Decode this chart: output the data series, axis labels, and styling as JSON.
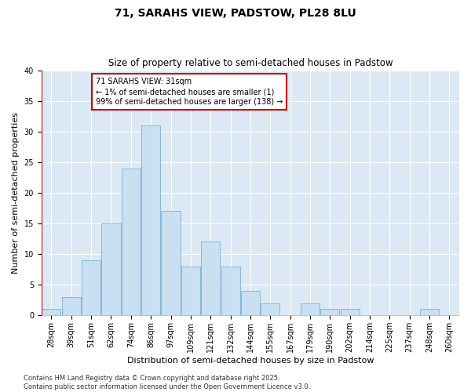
{
  "title": "71, SARAHS VIEW, PADSTOW, PL28 8LU",
  "subtitle": "Size of property relative to semi-detached houses in Padstow",
  "xlabel": "Distribution of semi-detached houses by size in Padstow",
  "ylabel": "Number of semi-detached properties",
  "bin_labels": [
    "28sqm",
    "39sqm",
    "51sqm",
    "62sqm",
    "74sqm",
    "86sqm",
    "97sqm",
    "109sqm",
    "121sqm",
    "132sqm",
    "144sqm",
    "155sqm",
    "167sqm",
    "179sqm",
    "190sqm",
    "202sqm",
    "214sqm",
    "225sqm",
    "237sqm",
    "248sqm",
    "260sqm"
  ],
  "bar_values": [
    1,
    3,
    9,
    15,
    24,
    31,
    17,
    8,
    12,
    8,
    4,
    2,
    0,
    2,
    1,
    1,
    0,
    0,
    0,
    1,
    0
  ],
  "bar_color": "#c9dff2",
  "bar_edge_color": "#7ab0d4",
  "highlight_bar_index": 0,
  "highlight_left_line_color": "#cc0000",
  "annotation_text": "71 SARAHS VIEW: 31sqm\n← 1% of semi-detached houses are smaller (1)\n99% of semi-detached houses are larger (138) →",
  "annotation_box_edgecolor": "#cc0000",
  "annotation_box_facecolor": "#ffffff",
  "ylim": [
    0,
    40
  ],
  "yticks": [
    0,
    5,
    10,
    15,
    20,
    25,
    30,
    35,
    40
  ],
  "bg_color": "#ffffff",
  "plot_bg_color": "#dce9f5",
  "footer_text": "Contains HM Land Registry data © Crown copyright and database right 2025.\nContains public sector information licensed under the Open Government Licence v3.0.",
  "title_fontsize": 10,
  "subtitle_fontsize": 8.5,
  "axis_label_fontsize": 8,
  "tick_fontsize": 7,
  "footer_fontsize": 6,
  "annotation_fontsize": 7
}
